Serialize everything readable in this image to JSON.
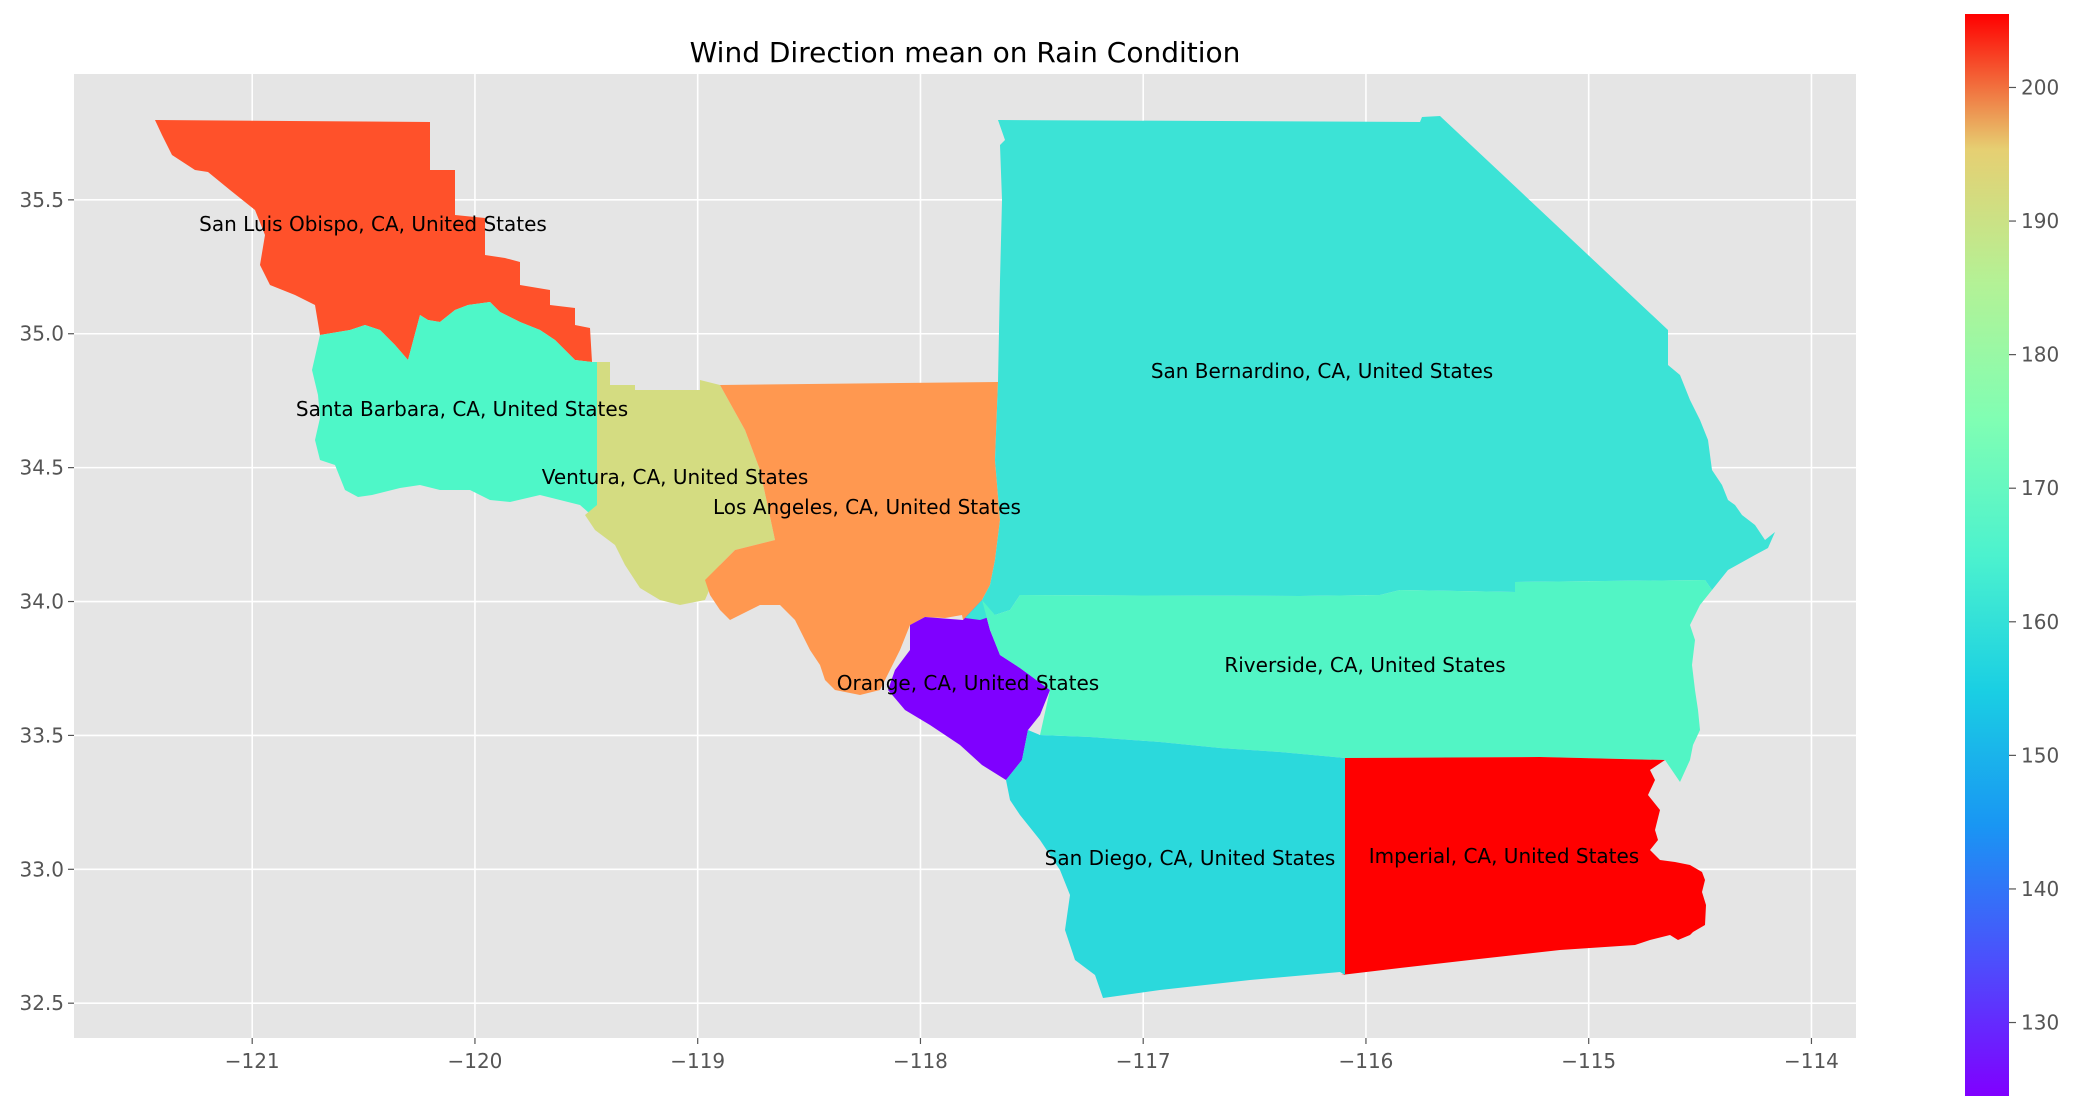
{
  "chart_data": {
    "type": "choropleth",
    "title": "Wind Direction mean on Rain Condition",
    "xlabel": "",
    "ylabel": "",
    "xlim": [
      -121.8,
      -113.8
    ],
    "ylim": [
      32.37,
      35.97
    ],
    "x_ticks": [
      "−121",
      "−120",
      "−119",
      "−118",
      "−117",
      "−116",
      "−115",
      "−114"
    ],
    "y_ticks": [
      "32.5",
      "33.0",
      "33.5",
      "34.0",
      "34.5",
      "35.0",
      "35.5"
    ],
    "grid": true,
    "colormap": "rainbow",
    "colorbar": {
      "vmin": 124.5,
      "vmax": 205.5,
      "ticks": [
        "130",
        "140",
        "150",
        "160",
        "170",
        "180",
        "190",
        "200"
      ]
    },
    "regions": [
      {
        "name": "San Luis Obispo, CA, United States",
        "value": 195.5,
        "color": "#ff512a"
      },
      {
        "name": "Santa Barbara, CA, United States",
        "value": 159.0,
        "color": "#4ef7c8"
      },
      {
        "name": "Ventura, CA, United States",
        "value": 180.2,
        "color": "#d4dc81"
      },
      {
        "name": "Los Angeles, CA, United States",
        "value": 190.4,
        "color": "#ff9850"
      },
      {
        "name": "San Bernardino, CA, United States",
        "value": 155.6,
        "color": "#3ce3d6"
      },
      {
        "name": "Riverside, CA, United States",
        "value": 159.2,
        "color": "#52f5c5"
      },
      {
        "name": "Orange, CA, United States",
        "value": 124.5,
        "color": "#7f00ff"
      },
      {
        "name": "San Diego, CA, United States",
        "value": 153.4,
        "color": "#2bd9dc"
      },
      {
        "name": "Imperial, CA, United States",
        "value": 205.5,
        "color": "#ff0000"
      }
    ]
  }
}
